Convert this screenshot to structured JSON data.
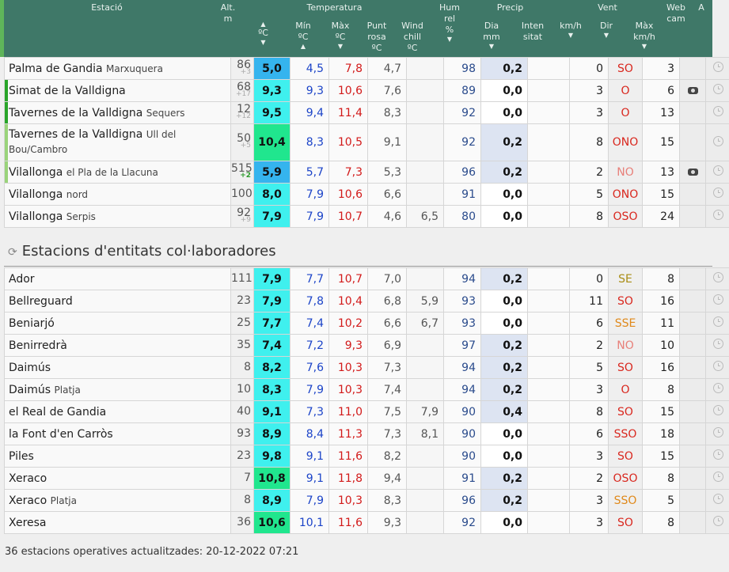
{
  "header": {
    "estacio": "Estació",
    "alt": "Alt.",
    "alt_unit": "m",
    "temperatura": "Temperatura",
    "temp_unit": "ºC",
    "min": "Mín",
    "min_unit": "ºC",
    "max": "Màx",
    "max_unit": "ºC",
    "punt_rosa": "Punt\nrosa",
    "punt_rosa_unit": "ºC",
    "wind_chill": "Wind\nchill",
    "wind_chill_unit": "ºC",
    "hum": "Hum\nrel",
    "hum_unit": "%",
    "precip": "Precip",
    "dia": "Dia",
    "dia_unit": "mm",
    "intensitat": "Inten\nsitat",
    "vent": "Vent",
    "kmh": "km/h",
    "dir": "Dir",
    "max_kmh": "Màx\nkm/h",
    "webcam": "Web\ncam",
    "a": "A"
  },
  "stations_top": [
    {
      "name": "Palma de Gandia",
      "sub": "Marxuquera",
      "alt": "86",
      "alt_d": "+3",
      "cur": "5,0",
      "min": "4,5",
      "max": "7,8",
      "pr": "4,7",
      "wc": "",
      "hum": "98",
      "pd": "0,2",
      "pi": "",
      "kmh": "0",
      "dir": "SO",
      "gust": "3",
      "cam": false,
      "bar": "",
      "cur_color": "#35b4ee",
      "dir_color": "#d9271e",
      "pd_bg": "#dde4f2"
    },
    {
      "name": "Simat de la Valldigna",
      "sub": "",
      "alt": "68",
      "alt_d": "+17",
      "cur": "9,3",
      "min": "9,3",
      "max": "10,6",
      "pr": "7,6",
      "wc": "",
      "hum": "89",
      "pd": "0,0",
      "pi": "",
      "kmh": "3",
      "dir": "O",
      "gust": "6",
      "cam": true,
      "bar": "g",
      "cur_color": "#3ff0ee",
      "dir_color": "#d9271e",
      "pd_bg": "#ffffff"
    },
    {
      "name": "Tavernes de la Valldigna",
      "sub": "Sequers",
      "alt": "12",
      "alt_d": "+12",
      "cur": "9,5",
      "min": "9,4",
      "max": "11,4",
      "pr": "8,3",
      "wc": "",
      "hum": "92",
      "pd": "0,0",
      "pi": "",
      "kmh": "3",
      "dir": "O",
      "gust": "13",
      "cam": false,
      "bar": "g",
      "cur_color": "#3ff0ee",
      "dir_color": "#d9271e",
      "pd_bg": "#ffffff"
    },
    {
      "name": "Tavernes de la Valldigna",
      "sub": "Ull del Bou/Cambro",
      "alt": "50",
      "alt_d": "+5",
      "cur": "10,4",
      "min": "8,3",
      "max": "10,5",
      "pr": "9,1",
      "wc": "",
      "hum": "92",
      "pd": "0,2",
      "pi": "",
      "kmh": "8",
      "dir": "ONO",
      "gust": "15",
      "cam": false,
      "bar": "lg",
      "cur_color": "#20e68e",
      "dir_color": "#d9271e",
      "pd_bg": "#dde4f2",
      "tall": true
    },
    {
      "name": "Vilallonga",
      "sub": "el Pla de la Llacuna",
      "alt": "515",
      "alt_d": "+2",
      "alt_pos": true,
      "cur": "5,9",
      "min": "5,7",
      "max": "7,3",
      "pr": "5,3",
      "wc": "",
      "hum": "96",
      "pd": "0,2",
      "pi": "",
      "kmh": "2",
      "dir": "NO",
      "gust": "13",
      "cam": true,
      "bar": "lg",
      "cur_color": "#35b4ee",
      "dir_color": "#e8807a",
      "pd_bg": "#dde4f2"
    },
    {
      "name": "Vilallonga",
      "sub": "nord",
      "alt": "100",
      "alt_d": "",
      "cur": "8,0",
      "min": "7,9",
      "max": "10,6",
      "pr": "6,6",
      "wc": "",
      "hum": "91",
      "pd": "0,0",
      "pi": "",
      "kmh": "5",
      "dir": "ONO",
      "gust": "15",
      "cam": false,
      "bar": "",
      "cur_color": "#3ff0ee",
      "dir_color": "#d9271e",
      "pd_bg": "#ffffff"
    },
    {
      "name": "Vilallonga",
      "sub": "Serpis",
      "alt": "92",
      "alt_d": "+9",
      "cur": "7,9",
      "min": "7,9",
      "max": "10,7",
      "pr": "4,6",
      "wc": "6,5",
      "hum": "80",
      "pd": "0,0",
      "pi": "",
      "kmh": "8",
      "dir": "OSO",
      "gust": "24",
      "cam": false,
      "bar": "",
      "cur_color": "#3ff0ee",
      "dir_color": "#d9271e",
      "pd_bg": "#ffffff"
    }
  ],
  "section_title": "Estacions d'entitats col·laboradores",
  "stations_collab": [
    {
      "name": "Ador",
      "sub": "",
      "alt": "111",
      "cur": "7,9",
      "min": "7,7",
      "max": "10,7",
      "pr": "7,0",
      "wc": "",
      "hum": "94",
      "pd": "0,2",
      "kmh": "0",
      "dir": "SE",
      "gust": "8",
      "cur_color": "#3ff0ee",
      "dir_color": "#a98d15",
      "pd_bg": "#dde4f2"
    },
    {
      "name": "Bellreguard",
      "sub": "",
      "alt": "23",
      "cur": "7,9",
      "min": "7,8",
      "max": "10,4",
      "pr": "6,8",
      "wc": "5,9",
      "hum": "93",
      "pd": "0,0",
      "kmh": "11",
      "dir": "SO",
      "gust": "16",
      "cur_color": "#3ff0ee",
      "dir_color": "#d9271e",
      "pd_bg": "#ffffff"
    },
    {
      "name": "Beniarjó",
      "sub": "",
      "alt": "25",
      "cur": "7,7",
      "min": "7,4",
      "max": "10,2",
      "pr": "6,6",
      "wc": "6,7",
      "hum": "93",
      "pd": "0,0",
      "kmh": "6",
      "dir": "SSE",
      "gust": "11",
      "cur_color": "#3ff0ee",
      "dir_color": "#e0891a",
      "pd_bg": "#ffffff"
    },
    {
      "name": "Benirredrà",
      "sub": "",
      "alt": "35",
      "cur": "7,4",
      "min": "7,2",
      "max": "9,3",
      "pr": "6,9",
      "wc": "",
      "hum": "97",
      "pd": "0,2",
      "kmh": "2",
      "dir": "NO",
      "gust": "10",
      "cur_color": "#3ff0ee",
      "dir_color": "#e8807a",
      "pd_bg": "#dde4f2"
    },
    {
      "name": "Daimús",
      "sub": "",
      "alt": "8",
      "cur": "8,2",
      "min": "7,6",
      "max": "10,3",
      "pr": "7,3",
      "wc": "",
      "hum": "94",
      "pd": "0,2",
      "kmh": "5",
      "dir": "SO",
      "gust": "16",
      "cur_color": "#3ff0ee",
      "dir_color": "#d9271e",
      "pd_bg": "#dde4f2"
    },
    {
      "name": "Daimús",
      "sub": "Platja",
      "alt": "10",
      "cur": "8,3",
      "min": "7,9",
      "max": "10,3",
      "pr": "7,4",
      "wc": "",
      "hum": "94",
      "pd": "0,2",
      "kmh": "3",
      "dir": "O",
      "gust": "8",
      "cur_color": "#3ff0ee",
      "dir_color": "#d9271e",
      "pd_bg": "#dde4f2"
    },
    {
      "name": "el Real de Gandia",
      "sub": "",
      "alt": "40",
      "cur": "9,1",
      "min": "7,3",
      "max": "11,0",
      "pr": "7,5",
      "wc": "7,9",
      "hum": "90",
      "pd": "0,4",
      "kmh": "8",
      "dir": "SO",
      "gust": "15",
      "cur_color": "#3ff0ee",
      "dir_color": "#d9271e",
      "pd_bg": "#dde4f2"
    },
    {
      "name": "la Font d'en Carròs",
      "sub": "",
      "alt": "93",
      "cur": "8,9",
      "min": "8,4",
      "max": "11,3",
      "pr": "7,3",
      "wc": "8,1",
      "hum": "90",
      "pd": "0,0",
      "kmh": "6",
      "dir": "SSO",
      "gust": "18",
      "cur_color": "#3ff0ee",
      "dir_color": "#d9271e",
      "pd_bg": "#ffffff"
    },
    {
      "name": "Piles",
      "sub": "",
      "alt": "23",
      "cur": "9,8",
      "min": "9,1",
      "max": "11,6",
      "pr": "8,2",
      "wc": "",
      "hum": "90",
      "pd": "0,0",
      "kmh": "3",
      "dir": "SO",
      "gust": "15",
      "cur_color": "#3ff0ee",
      "dir_color": "#d9271e",
      "pd_bg": "#ffffff"
    },
    {
      "name": "Xeraco",
      "sub": "",
      "alt": "7",
      "cur": "10,8",
      "min": "9,1",
      "max": "11,8",
      "pr": "9,4",
      "wc": "",
      "hum": "91",
      "pd": "0,2",
      "kmh": "2",
      "dir": "OSO",
      "gust": "8",
      "cur_color": "#20e68e",
      "dir_color": "#d9271e",
      "pd_bg": "#dde4f2"
    },
    {
      "name": "Xeraco",
      "sub": "Platja",
      "alt": "8",
      "cur": "8,9",
      "min": "7,9",
      "max": "10,3",
      "pr": "8,3",
      "wc": "",
      "hum": "96",
      "pd": "0,2",
      "kmh": "3",
      "dir": "SSO",
      "gust": "5",
      "cur_color": "#3ff0ee",
      "dir_color": "#e0891a",
      "pd_bg": "#dde4f2"
    },
    {
      "name": "Xeresa",
      "sub": "",
      "alt": "36",
      "cur": "10,6",
      "min": "10,1",
      "max": "11,6",
      "pr": "9,3",
      "wc": "",
      "hum": "92",
      "pd": "0,0",
      "kmh": "3",
      "dir": "SO",
      "gust": "8",
      "cur_color": "#20e68e",
      "dir_color": "#d9271e",
      "pd_bg": "#ffffff"
    }
  ],
  "footer": {
    "text": "36 estacions operatives actualitzades: 20-12-2022 07:21"
  }
}
